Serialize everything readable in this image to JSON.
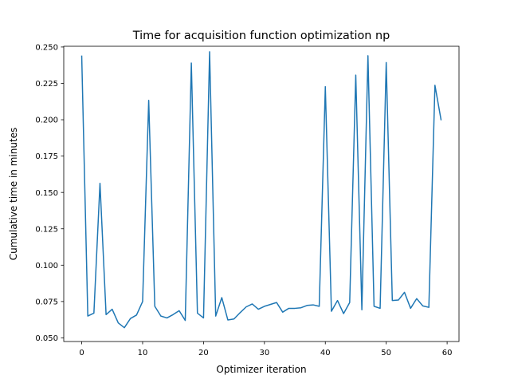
{
  "chart_data": {
    "type": "line",
    "title": "Time for acquisition function optimization np",
    "xlabel": "Optimizer iteration",
    "ylabel": "Cumulative time in minutes",
    "xlim": [
      -2.95,
      61.95
    ],
    "ylim": [
      0.0475,
      0.2505
    ],
    "xticks": [
      0,
      10,
      20,
      30,
      40,
      50,
      60
    ],
    "xtick_labels": [
      "0",
      "10",
      "20",
      "30",
      "40",
      "50",
      "60"
    ],
    "yticks": [
      0.05,
      0.075,
      0.1,
      0.125,
      0.15,
      0.175,
      0.2,
      0.225,
      0.25
    ],
    "ytick_labels": [
      "0.050",
      "0.075",
      "0.100",
      "0.125",
      "0.150",
      "0.175",
      "0.200",
      "0.225",
      "0.250"
    ],
    "grid": false,
    "series": [
      {
        "color": "#1f77b4",
        "x": [
          0,
          1,
          2,
          3,
          4,
          5,
          6,
          7,
          8,
          9,
          10,
          11,
          12,
          13,
          14,
          15,
          16,
          17,
          18,
          19,
          20,
          21,
          22,
          23,
          24,
          25,
          26,
          27,
          28,
          29,
          30,
          31,
          32,
          33,
          34,
          35,
          36,
          37,
          38,
          39,
          40,
          41,
          42,
          43,
          44,
          45,
          46,
          47,
          48,
          49,
          50,
          51,
          52,
          53,
          54,
          55,
          56,
          57,
          58,
          59
        ],
        "values": [
          0.2437,
          0.065,
          0.067,
          0.1563,
          0.066,
          0.0697,
          0.0603,
          0.057,
          0.0633,
          0.0657,
          0.075,
          0.2133,
          0.0717,
          0.065,
          0.0637,
          0.066,
          0.0687,
          0.062,
          0.239,
          0.067,
          0.0637,
          0.2467,
          0.065,
          0.0777,
          0.0623,
          0.063,
          0.0673,
          0.0713,
          0.0733,
          0.0697,
          0.0717,
          0.073,
          0.0743,
          0.0677,
          0.0703,
          0.0703,
          0.0707,
          0.0723,
          0.0727,
          0.0717,
          0.2227,
          0.0683,
          0.0757,
          0.0667,
          0.0743,
          0.2307,
          0.0693,
          0.244,
          0.0717,
          0.0703,
          0.2393,
          0.0757,
          0.076,
          0.0813,
          0.0703,
          0.077,
          0.072,
          0.071,
          0.2237,
          0.2
        ]
      }
    ]
  }
}
